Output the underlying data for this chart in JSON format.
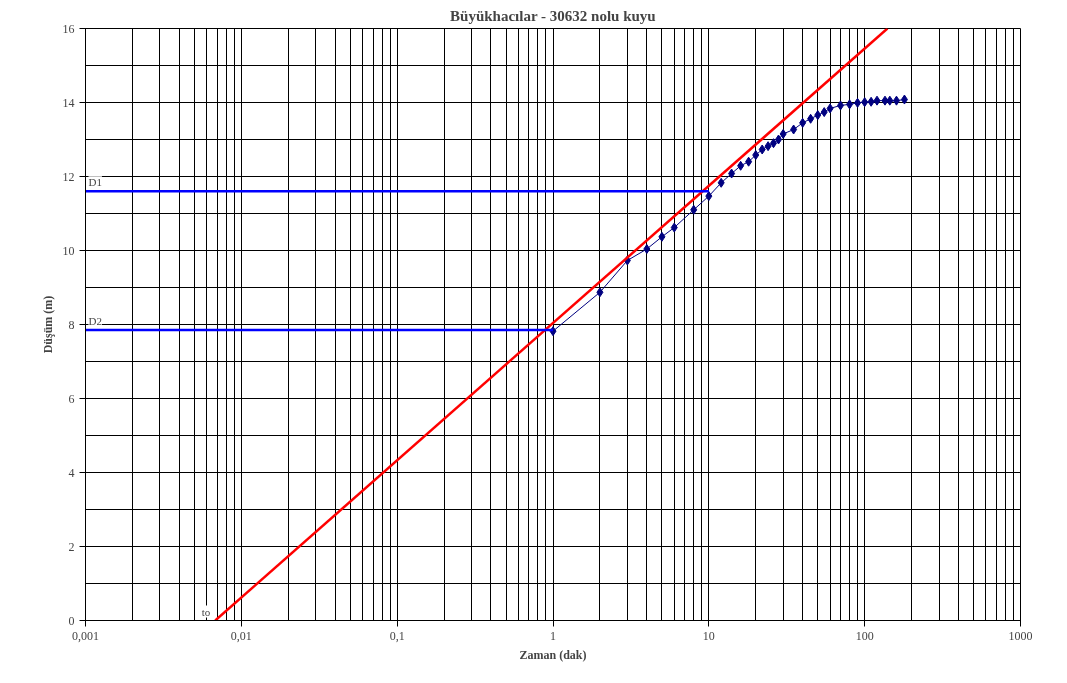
{
  "chart_data": {
    "type": "line",
    "title": "Büyükhacılar - 30632 nolu kuyu",
    "xlabel": "Zaman (dak)",
    "ylabel": "Düşüm (m)",
    "log": "x",
    "grid": true,
    "xlim": [
      0.001,
      1000
    ],
    "xticks": [
      {
        "value": 0.001,
        "label": "0,001"
      },
      {
        "value": 0.01,
        "label": "0,01"
      },
      {
        "value": 0.1,
        "label": "0,1"
      },
      1,
      10,
      100,
      1000
    ],
    "ylim": [
      0,
      16
    ],
    "yticks": [
      0,
      2,
      4,
      6,
      8,
      10,
      12,
      14,
      16
    ],
    "series": [
      {
        "marker": "diamond",
        "color": "#000080",
        "x": [
          1,
          2,
          3,
          4,
          5,
          6,
          8,
          10,
          12,
          14,
          16,
          18,
          20,
          22,
          24,
          26,
          28,
          30,
          35,
          40,
          45,
          50,
          55,
          60,
          70,
          80,
          90,
          100,
          110,
          120,
          135,
          145,
          160,
          180
        ],
        "values": [
          7.82,
          8.87,
          9.73,
          10.04,
          10.37,
          10.62,
          11.1,
          11.47,
          11.83,
          12.08,
          12.29,
          12.4,
          12.58,
          12.73,
          12.82,
          12.9,
          13.0,
          13.15,
          13.27,
          13.45,
          13.56,
          13.66,
          13.74,
          13.84,
          13.92,
          13.95,
          13.99,
          14.01,
          14.02,
          14.05,
          14.05,
          14.05,
          14.05,
          14.08
        ]
      },
      {
        "marker": "none",
        "color": "#ff0000",
        "x": [
          0.0068,
          140
        ],
        "values": [
          0,
          16
        ]
      },
      {
        "marker": "none",
        "name": "D1",
        "color": "#0000ff",
        "x": [
          0.001,
          10
        ],
        "values": [
          11.6,
          11.6
        ]
      },
      {
        "marker": "none",
        "name": "D2",
        "color": "#0000ff",
        "x": [
          0.001,
          1
        ],
        "values": [
          7.85,
          7.85
        ]
      }
    ],
    "annotations": [
      {
        "text": "to",
        "x": 0.0068,
        "y": 0
      }
    ]
  }
}
